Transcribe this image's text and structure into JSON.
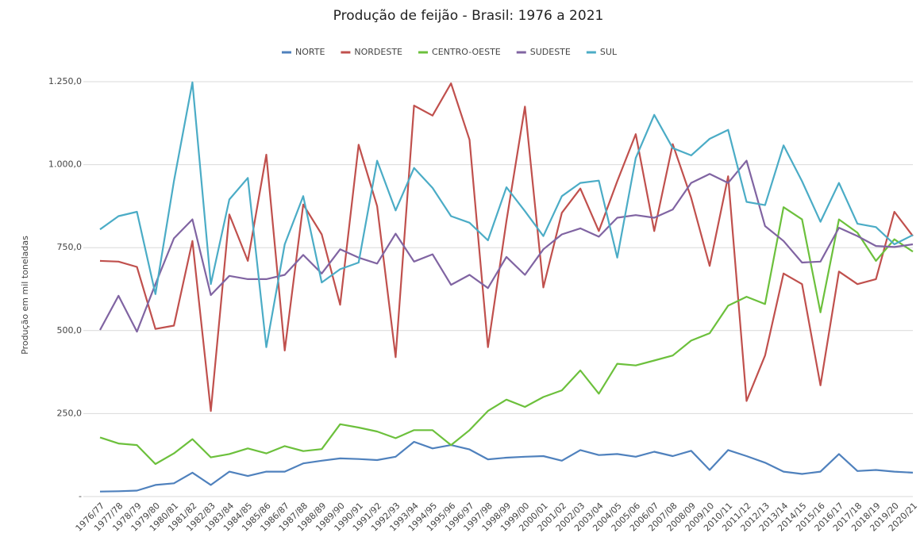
{
  "chart_data": {
    "type": "line",
    "title": "Produção de feijão - Brasil: 1976 a 2021",
    "y_label": "Produção em mil toneladas",
    "categories": [
      "1976/77",
      "1977/78",
      "1978/79",
      "1979/80",
      "1980/81",
      "1981/82",
      "1982/83",
      "1983/84",
      "1984/85",
      "1985/86",
      "1986/87",
      "1987/88",
      "1988/89",
      "1989/90",
      "1990/91",
      "1991/92",
      "1992/93",
      "1993/94",
      "1994/95",
      "1995/96",
      "1996/97",
      "1997/98",
      "1998/99",
      "1999/00",
      "2000/01",
      "2001/02",
      "2002/03",
      "2003/04",
      "2004/05",
      "2005/06",
      "2006/07",
      "2007/08",
      "2008/09",
      "2009/10",
      "2010/11",
      "2011/12",
      "2012/13",
      "2013/14",
      "2014/15",
      "2015/16",
      "2016/17",
      "2017/18",
      "2018/19",
      "2019/20",
      "2020/21"
    ],
    "series": [
      {
        "name": "NORTE",
        "color": "#4f81bd",
        "values": [
          15,
          16,
          18,
          35,
          40,
          72,
          35,
          75,
          62,
          75,
          75,
          100,
          108,
          115,
          113,
          110,
          120,
          165,
          145,
          155,
          142,
          112,
          117,
          120,
          122,
          108,
          140,
          125,
          128,
          120,
          135,
          122,
          138,
          80,
          140,
          122,
          102,
          75,
          68,
          75,
          128,
          77,
          80,
          75,
          72
        ]
      },
      {
        "name": "NORDESTE",
        "color": "#c0504d",
        "values": [
          710,
          708,
          692,
          505,
          515,
          770,
          258,
          850,
          710,
          1030,
          440,
          880,
          790,
          578,
          1060,
          875,
          420,
          1178,
          1148,
          1245,
          1075,
          450,
          830,
          1175,
          630,
          855,
          928,
          800,
          950,
          1092,
          800,
          1062,
          900,
          695,
          965,
          288,
          425,
          672,
          640,
          335,
          678,
          640,
          655,
          858,
          785
        ]
      },
      {
        "name": "CENTRO-OESTE",
        "color": "#6cc03c",
        "values": [
          178,
          160,
          155,
          98,
          130,
          173,
          118,
          128,
          145,
          130,
          152,
          137,
          143,
          218,
          208,
          196,
          176,
          200,
          200,
          155,
          200,
          258,
          292,
          270,
          300,
          320,
          380,
          310,
          400,
          395,
          410,
          425,
          470,
          492,
          575,
          602,
          580,
          872,
          835,
          555,
          835,
          795,
          710,
          775,
          738
        ]
      },
      {
        "name": "SUDESTE",
        "color": "#8064a2",
        "values": [
          502,
          605,
          497,
          640,
          778,
          835,
          607,
          665,
          655,
          655,
          668,
          728,
          672,
          745,
          720,
          702,
          792,
          708,
          730,
          638,
          668,
          628,
          722,
          668,
          745,
          790,
          808,
          783,
          840,
          848,
          840,
          865,
          945,
          972,
          945,
          1012,
          815,
          770,
          705,
          708,
          810,
          785,
          755,
          752,
          760
        ]
      },
      {
        "name": "SUL",
        "color": "#4bacc6",
        "values": [
          805,
          845,
          858,
          610,
          950,
          1248,
          640,
          895,
          960,
          450,
          760,
          905,
          645,
          685,
          705,
          1012,
          862,
          990,
          930,
          845,
          825,
          772,
          932,
          860,
          785,
          905,
          945,
          952,
          720,
          1020,
          1150,
          1050,
          1028,
          1078,
          1105,
          888,
          878,
          1058,
          950,
          828,
          945,
          822,
          812,
          760,
          788
        ]
      }
    ],
    "ylim": [
      0,
      1250
    ],
    "yticks": [
      {
        "value": 0,
        "label": "-"
      },
      {
        "value": 250,
        "label": "250,0"
      },
      {
        "value": 500,
        "label": "500,0"
      },
      {
        "value": 750,
        "label": "750,0"
      },
      {
        "value": 1000,
        "label": "1.000,0"
      },
      {
        "value": 1250,
        "label": "1.250,0"
      }
    ],
    "grid": true,
    "legend": "top"
  }
}
